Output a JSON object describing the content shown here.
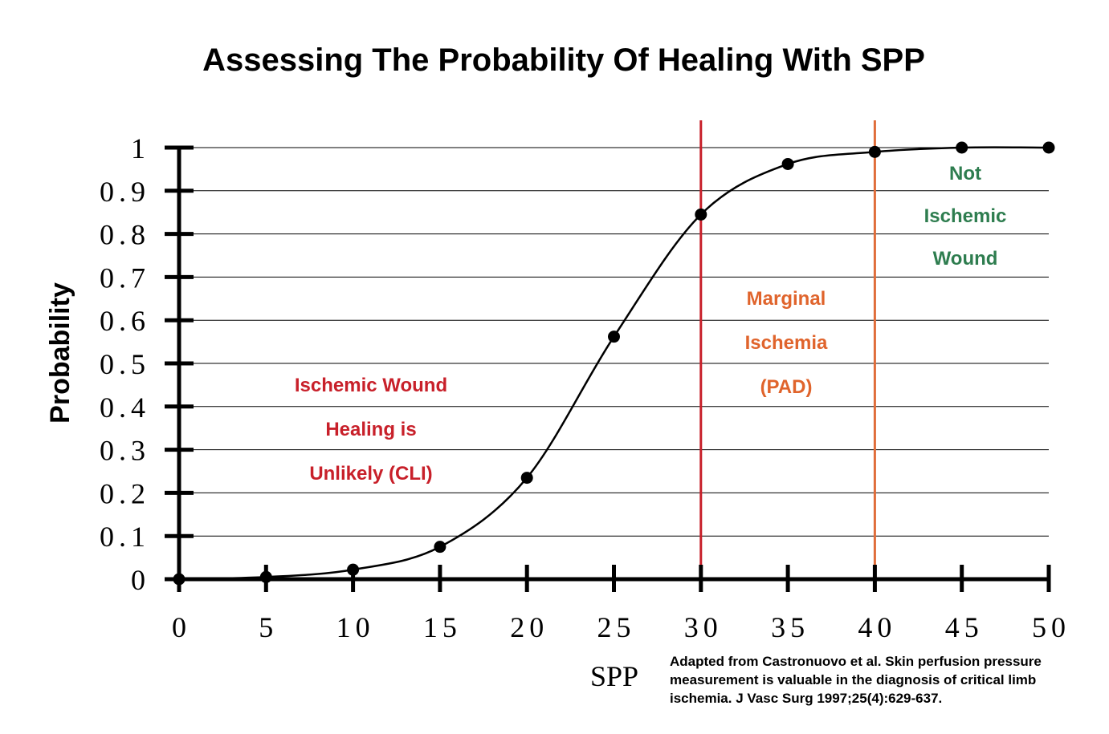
{
  "chart_data": {
    "type": "line",
    "title": "Assessing The Probability Of Healing With SPP",
    "xlabel": "SPP",
    "ylabel": "Probability",
    "x": [
      0,
      5,
      10,
      15,
      20,
      25,
      30,
      35,
      40,
      45,
      50
    ],
    "series": [
      {
        "values": [
          0,
          0.005,
          0.022,
          0.075,
          0.235,
          0.562,
          0.845,
          0.962,
          0.99,
          1.0,
          1.0
        ]
      }
    ],
    "xlim": [
      0,
      50
    ],
    "ylim": [
      0,
      1
    ],
    "x_ticks": [
      "0",
      "5",
      "10",
      "15",
      "20",
      "25",
      "30",
      "35",
      "40",
      "45",
      "50"
    ],
    "y_ticks": [
      "0",
      "0.1",
      "0.2",
      "0.3",
      "0.4",
      "0.5",
      "0.6",
      "0.7",
      "0.8",
      "0.9",
      "1"
    ],
    "y_tick_values": [
      0,
      0.1,
      0.2,
      0.3,
      0.4,
      0.5,
      0.6,
      0.7,
      0.8,
      0.9,
      1
    ],
    "grid": "horizontal",
    "colors": {
      "line": "#000000",
      "grid": "#000000",
      "threshold_30": "#c8202a",
      "threshold_40": "#e06d3a",
      "zone_cli": "#c8202a",
      "zone_marginal": "#e0642c",
      "zone_not_ischemic": "#2e7d4f"
    },
    "thresholds": [
      {
        "x": 30,
        "color": "#c8202a"
      },
      {
        "x": 40,
        "color": "#e06d3a"
      }
    ],
    "annotations": {
      "cli": [
        "Ischemic Wound",
        "Healing is",
        "Unlikely (CLI)"
      ],
      "marginal": [
        "Marginal",
        "Ischemia",
        "(PAD)"
      ],
      "not_ischemic": [
        "Not",
        "Ischemic",
        "Wound"
      ]
    },
    "citation": [
      "Adapted from Castronuovo et al. Skin perfusion pressure",
      "measurement is valuable in the diagnosis of critical limb",
      "ischemia. J Vasc Surg 1997;25(4):629-637."
    ]
  }
}
